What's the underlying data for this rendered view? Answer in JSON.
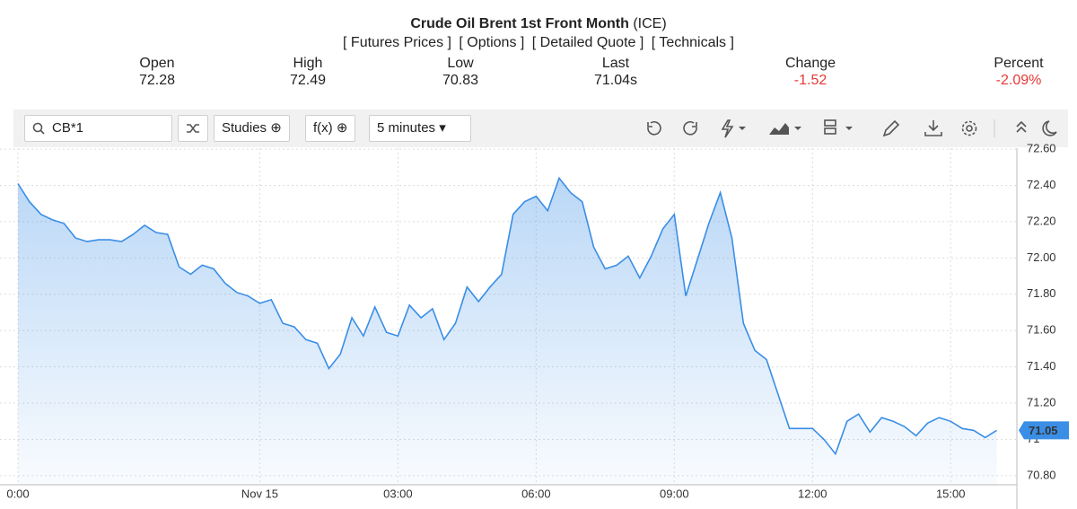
{
  "header": {
    "title": "Crude Oil Brent 1st Front Month",
    "exchange": "(ICE)",
    "links": [
      "[ Futures Prices ]",
      "[ Options ]",
      "[ Detailed Quote ]",
      "[ Technicals ]"
    ],
    "stats": [
      {
        "label": "Open",
        "value": "72.28"
      },
      {
        "label": "High",
        "value": "72.49"
      },
      {
        "label": "Low",
        "value": "70.83"
      },
      {
        "label": "Last",
        "value": "71.04s"
      },
      {
        "label": "Change",
        "value": "-1.52"
      },
      {
        "label": "Percent",
        "value": "-2.09%"
      }
    ]
  },
  "toolbar": {
    "symbol": "CB*1",
    "studies": "Studies",
    "fx": "f(x)",
    "interval": "5 minutes"
  },
  "chart_data": {
    "type": "line",
    "categories": [
      "0:00",
      null,
      null,
      null,
      null,
      null,
      null,
      null,
      null,
      null,
      null,
      null,
      null,
      null,
      null,
      null,
      null,
      null,
      null,
      null,
      null,
      "Nov 15",
      null,
      null,
      null,
      null,
      null,
      null,
      null,
      null,
      null,
      null,
      null,
      "03:00",
      null,
      null,
      null,
      null,
      null,
      null,
      null,
      null,
      null,
      null,
      null,
      "06:00",
      null,
      null,
      null,
      null,
      null,
      null,
      null,
      null,
      null,
      null,
      null,
      "09:00",
      null,
      null,
      null,
      null,
      null,
      null,
      null,
      null,
      null,
      null,
      null,
      "12:00",
      null,
      null,
      null,
      null,
      null,
      null,
      null,
      null,
      null,
      null,
      null,
      "15:00",
      null,
      null,
      null,
      null
    ],
    "series": [
      {
        "name": "CB*1",
        "color": "#3a8ee6",
        "values": [
          72.41,
          72.31,
          72.24,
          72.21,
          72.19,
          72.11,
          72.09,
          72.1,
          72.1,
          72.09,
          72.13,
          72.18,
          72.14,
          72.13,
          71.95,
          71.91,
          71.96,
          71.94,
          71.86,
          71.81,
          71.79,
          71.75,
          71.77,
          71.64,
          71.62,
          71.55,
          71.53,
          71.39,
          71.47,
          71.67,
          71.57,
          71.73,
          71.59,
          71.57,
          71.74,
          71.67,
          71.72,
          71.55,
          71.64,
          71.84,
          71.76,
          71.84,
          71.91,
          72.24,
          72.31,
          72.34,
          72.26,
          72.44,
          72.36,
          72.31,
          72.06,
          71.94,
          71.96,
          72.01,
          71.89,
          72.01,
          72.16,
          72.24,
          71.79,
          71.99,
          72.19,
          72.36,
          72.11,
          71.64,
          71.49,
          71.44,
          71.25,
          71.06,
          71.06,
          71.06,
          71.0,
          70.92,
          71.1,
          71.14,
          71.04,
          71.12,
          71.1,
          71.07,
          71.02,
          71.09,
          71.12,
          71.1,
          71.06,
          71.05,
          71.01,
          71.05
        ]
      }
    ],
    "last_price": 71.05,
    "ylim": [
      70.75,
      72.63
    ],
    "yticks": [
      {
        "value": 70.8,
        "label": "70.80"
      },
      71,
      {
        "value": 71.2,
        "label": "71.20"
      },
      {
        "value": 71.4,
        "label": "71.40"
      },
      {
        "value": 71.6,
        "label": "71.60"
      },
      {
        "value": 71.8,
        "label": "71.80"
      },
      {
        "value": 72,
        "label": "72.00"
      },
      {
        "value": 72.2,
        "label": "72.20"
      },
      {
        "value": 72.4,
        "label": "72.40"
      },
      {
        "value": 72.6,
        "label": "72.60"
      }
    ],
    "grid": true
  }
}
